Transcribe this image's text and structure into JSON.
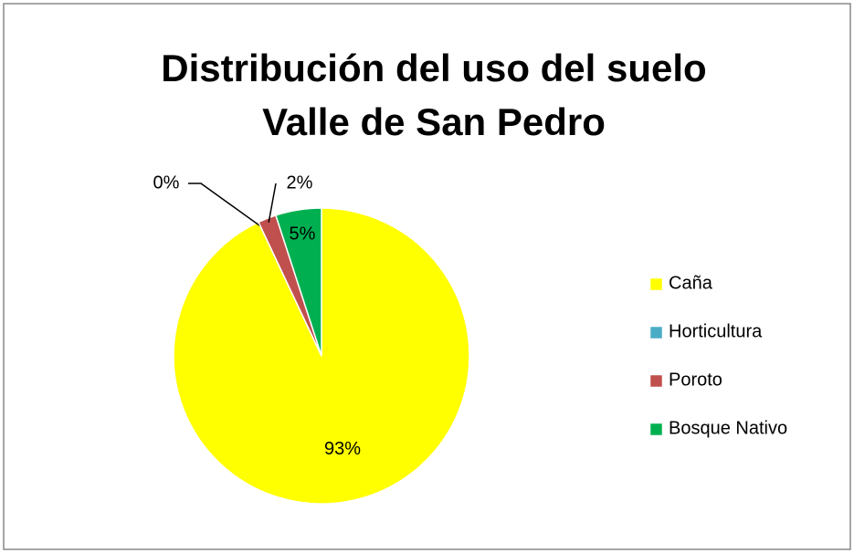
{
  "chart_data": {
    "type": "pie",
    "title": [
      "Distribución del uso del suelo",
      "Valle de San Pedro"
    ],
    "categories": [
      "Caña",
      "Horticultura",
      "Poroto",
      "Bosque Nativo"
    ],
    "values": [
      93,
      0,
      2,
      5
    ],
    "value_labels": [
      "93%",
      "0%",
      "2%",
      "5%"
    ],
    "colors": [
      "#ffff00",
      "#4bacc6",
      "#c0504d",
      "#00b050"
    ],
    "legend": "right"
  }
}
